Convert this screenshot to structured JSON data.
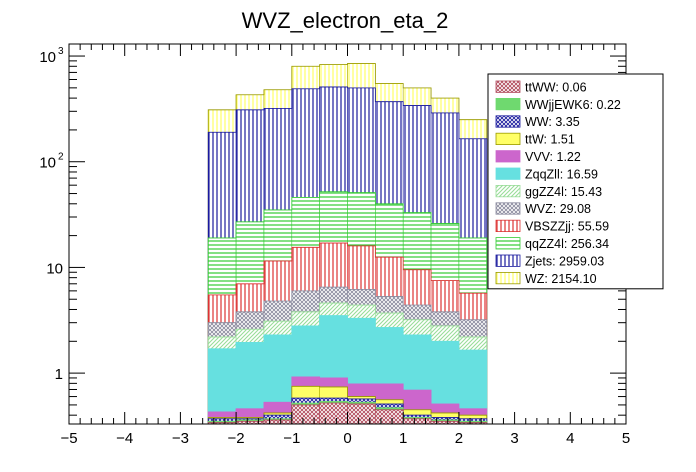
{
  "chart_data": {
    "type": "bar",
    "stacked": true,
    "log_y": true,
    "title": "WVZ_electron_eta_2",
    "xlabel": "",
    "ylabel": "",
    "xlim": [
      -5,
      5
    ],
    "ylim": [
      0.33,
      1300
    ],
    "bin_edges": [
      -2.5,
      -2.0,
      -1.5,
      -1.0,
      -0.5,
      0.0,
      0.5,
      1.0,
      1.5,
      2.0,
      2.5
    ],
    "x_ticks": [
      {
        "value": -5,
        "label": "−5"
      },
      {
        "value": -4,
        "label": "−4"
      },
      {
        "value": -3,
        "label": "−3"
      },
      {
        "value": -2,
        "label": "−2"
      },
      {
        "value": -1,
        "label": "−1"
      },
      {
        "value": 0,
        "label": "0"
      },
      {
        "value": 1,
        "label": "1"
      },
      {
        "value": 2,
        "label": "2"
      },
      {
        "value": 3,
        "label": "3"
      },
      {
        "value": 4,
        "label": "4"
      },
      {
        "value": 5,
        "label": "5"
      }
    ],
    "y_ticks": [
      {
        "value": 1,
        "base": "1",
        "exp": ""
      },
      {
        "value": 10,
        "base": "10",
        "exp": ""
      },
      {
        "value": 100,
        "base": "10",
        "exp": "2"
      },
      {
        "value": 1000,
        "base": "10",
        "exp": "3"
      }
    ],
    "series": [
      {
        "name": "ttWW",
        "legend": "ttWW: 0.06",
        "color": "#b0485a",
        "pattern": "cross",
        "cumulative": [
          0.34,
          0.35,
          0.36,
          0.5,
          0.52,
          0.51,
          0.45,
          0.37,
          0.35,
          0.34
        ]
      },
      {
        "name": "WWjjEWK6",
        "legend": "WWjjEWK6: 0.22",
        "color": "#6fd96f",
        "pattern": "solid",
        "cumulative": [
          0.35,
          0.36,
          0.37,
          0.52,
          0.54,
          0.53,
          0.47,
          0.38,
          0.36,
          0.35
        ]
      },
      {
        "name": "WW",
        "legend": "WW: 3.35",
        "color": "#1a1a9e",
        "pattern": "cross",
        "cumulative": [
          0.37,
          0.37,
          0.4,
          0.58,
          0.58,
          0.57,
          0.51,
          0.4,
          0.38,
          0.37
        ]
      },
      {
        "name": "ttW",
        "legend": "ttW: 1.51",
        "color": "#ffff66",
        "pattern": "solid",
        "cumulative": [
          0.38,
          0.38,
          0.42,
          0.75,
          0.74,
          0.6,
          0.56,
          0.45,
          0.42,
          0.4
        ]
      },
      {
        "name": "VVV",
        "legend": "VVV: 1.22",
        "color": "#cc66cc",
        "pattern": "solid",
        "cumulative": [
          0.43,
          0.46,
          0.53,
          0.92,
          0.9,
          0.79,
          0.79,
          0.69,
          0.51,
          0.46
        ]
      },
      {
        "name": "ZqqZll",
        "legend": "ZqqZll: 16.59",
        "color": "#66e0e0",
        "pattern": "solid",
        "cumulative": [
          1.7,
          1.95,
          2.3,
          2.8,
          3.5,
          3.3,
          2.7,
          2.3,
          2.0,
          1.65
        ]
      },
      {
        "name": "ggZZ4l",
        "legend": "ggZZ4l: 15.43",
        "color": "#99dd99",
        "pattern": "hatch",
        "cumulative": [
          2.2,
          2.6,
          3.1,
          3.8,
          4.6,
          4.4,
          3.7,
          3.2,
          2.8,
          2.2
        ]
      },
      {
        "name": "WVZ",
        "legend": "WVZ: 29.08",
        "color": "#8a8a9e",
        "pattern": "cross",
        "cumulative": [
          3.0,
          3.8,
          4.8,
          6.0,
          6.5,
          6.2,
          5.3,
          4.4,
          3.8,
          3.2
        ]
      },
      {
        "name": "VBSZZjj",
        "legend": "VBSZZjj: 55.59",
        "color": "#dd3333",
        "pattern": "vlines",
        "cumulative": [
          5.5,
          7.0,
          11.5,
          15.5,
          17.0,
          16.0,
          12.5,
          9.5,
          7.5,
          5.7
        ]
      },
      {
        "name": "qqZZ4l",
        "legend": "qqZZ4l: 256.34",
        "color": "#33cc33",
        "pattern": "hlines",
        "cumulative": [
          19,
          27,
          35,
          46,
          52,
          51,
          40,
          33,
          26,
          19
        ]
      },
      {
        "name": "Zjets",
        "legend": "Zjets: 2959.03",
        "color": "#1a1a9e",
        "pattern": "vlines",
        "cumulative": [
          190,
          310,
          320,
          490,
          510,
          500,
          370,
          340,
          290,
          165
        ]
      },
      {
        "name": "WZ",
        "legend": "WZ: 2154.10",
        "color": "#ffff66",
        "pattern": "vlines",
        "cumulative": [
          310,
          430,
          480,
          800,
          830,
          850,
          550,
          500,
          400,
          250
        ]
      }
    ]
  }
}
